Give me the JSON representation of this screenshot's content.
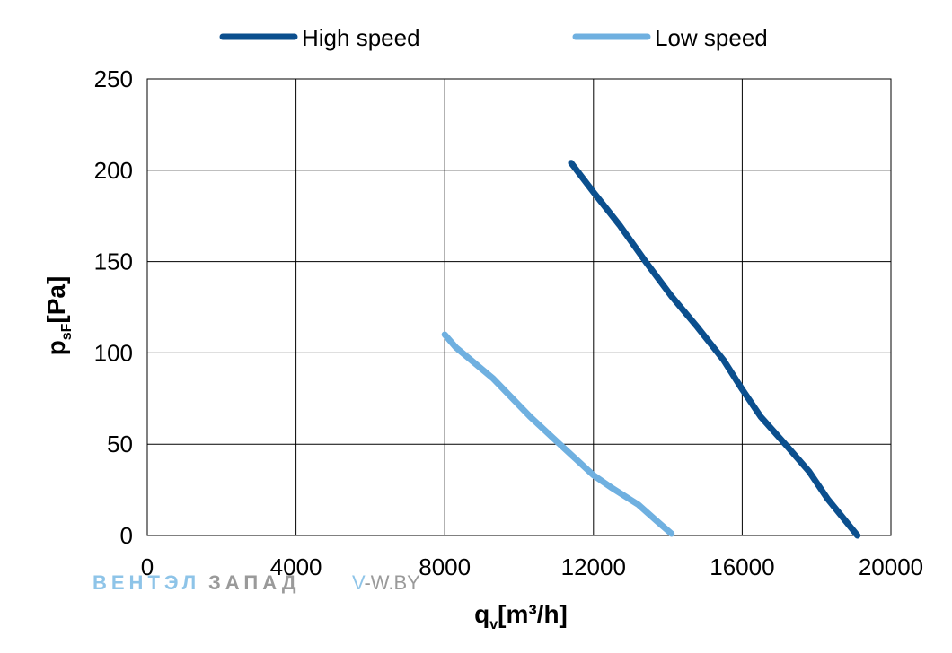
{
  "chart_data": {
    "type": "line",
    "xlabel": {
      "main": "q",
      "sub": "v",
      "rest": "[m³/h]"
    },
    "ylabel": {
      "main": "p",
      "sub": "sF",
      "rest": "[Pa]"
    },
    "xlim": [
      0,
      20000
    ],
    "ylim": [
      0,
      250
    ],
    "xticks": [
      0,
      4000,
      8000,
      12000,
      16000,
      20000
    ],
    "yticks": [
      0,
      50,
      100,
      150,
      200,
      250
    ],
    "grid": true,
    "legend_position": "top",
    "series": [
      {
        "name": "High speed",
        "color": "#0b4f8e",
        "points": [
          [
            11400,
            204
          ],
          [
            12000,
            188
          ],
          [
            12700,
            170
          ],
          [
            13400,
            150
          ],
          [
            14100,
            131
          ],
          [
            14800,
            114
          ],
          [
            15500,
            96
          ],
          [
            16000,
            80
          ],
          [
            16500,
            65
          ],
          [
            17200,
            49
          ],
          [
            17800,
            35
          ],
          [
            18300,
            20
          ],
          [
            19100,
            0
          ]
        ]
      },
      {
        "name": "Low speed",
        "color": "#6fb0e0",
        "points": [
          [
            8000,
            110
          ],
          [
            8300,
            103
          ],
          [
            9300,
            86
          ],
          [
            10300,
            65
          ],
          [
            11200,
            48
          ],
          [
            12000,
            33
          ],
          [
            12500,
            26
          ],
          [
            13200,
            17
          ],
          [
            13700,
            8
          ],
          [
            14100,
            1
          ]
        ]
      }
    ]
  },
  "watermark": {
    "part1": "ВЕНТЭЛ",
    "part2": "ЗАПАД",
    "site_prefix": "V",
    "site_rest": "-W.BY",
    "color_blue": "#8ec4e8",
    "color_gray": "#9a9a9a"
  }
}
